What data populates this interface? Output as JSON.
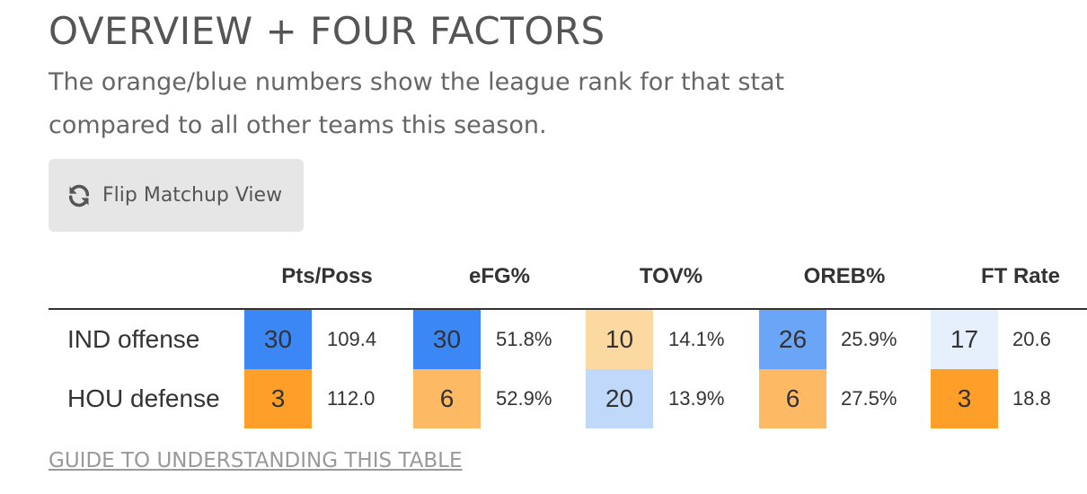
{
  "title": "OVERVIEW + FOUR FACTORS",
  "subtitle_line1": "The orange/blue numbers show the league rank for that stat",
  "subtitle_line2": "compared to all other teams this season.",
  "flip_button": {
    "label": "Flip Matchup View",
    "icon": "refresh-icon"
  },
  "table": {
    "columns": [
      "Pts/Poss",
      "eFG%",
      "TOV%",
      "OREB%",
      "FT Rate"
    ],
    "rows": [
      {
        "label": "IND offense",
        "cells": [
          {
            "rank": "30",
            "value": "109.4",
            "color": "#3b87f5"
          },
          {
            "rank": "30",
            "value": "51.8%",
            "color": "#3b87f5"
          },
          {
            "rank": "10",
            "value": "14.1%",
            "color": "#fdd9a2"
          },
          {
            "rank": "26",
            "value": "25.9%",
            "color": "#6aa5f7"
          },
          {
            "rank": "17",
            "value": "20.6",
            "color": "#e6f0fd"
          }
        ]
      },
      {
        "label": "HOU defense",
        "cells": [
          {
            "rank": "3",
            "value": "112.0",
            "color": "#fd9f28"
          },
          {
            "rank": "6",
            "value": "52.9%",
            "color": "#fdb964"
          },
          {
            "rank": "20",
            "value": "13.9%",
            "color": "#c0d9fb"
          },
          {
            "rank": "6",
            "value": "27.5%",
            "color": "#fdb964"
          },
          {
            "rank": "3",
            "value": "18.8",
            "color": "#fd9f28"
          }
        ]
      }
    ]
  },
  "guide_link": "GUIDE TO UNDERSTANDING THIS TABLE"
}
